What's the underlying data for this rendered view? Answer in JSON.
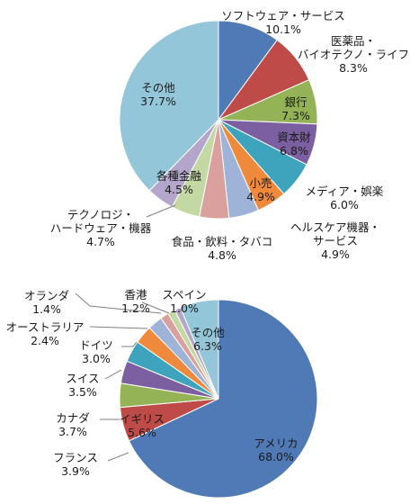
{
  "chart_data": [
    {
      "type": "pie",
      "title": "",
      "units": "%",
      "start": "top, clockwise",
      "slices": [
        {
          "lines": [
            "ソフトウェア・サービス"
          ],
          "value": 10.1,
          "value_label": "10.1%",
          "color": "#4f7ab5"
        },
        {
          "lines": [
            "医薬品・",
            "バイオテクノ・ライフ"
          ],
          "value": 8.3,
          "value_label": "8.3%",
          "color": "#bf4b48"
        },
        {
          "lines": [
            "銀行"
          ],
          "value": 7.3,
          "value_label": "7.3%",
          "color": "#94b356"
        },
        {
          "lines": [
            "資本財"
          ],
          "value": 6.8,
          "value_label": "6.8%",
          "color": "#7b5fa1"
        },
        {
          "lines": [
            "メディア・娯楽"
          ],
          "value": 6.0,
          "value_label": "6.0%",
          "color": "#3ea3bd"
        },
        {
          "lines": [
            "小売"
          ],
          "value": 4.9,
          "value_label": "4.9%",
          "color": "#ef8a3c"
        },
        {
          "lines": [
            "ヘルスケア機器・",
            "サービス"
          ],
          "value": 4.9,
          "value_label": "4.9%",
          "color": "#9fb3d9"
        },
        {
          "lines": [
            "食品・飲料・タバコ"
          ],
          "value": 4.8,
          "value_label": "4.8%",
          "color": "#d9a09e"
        },
        {
          "lines": [
            "テクノロジ・",
            "ハードウェア・機器"
          ],
          "value": 4.7,
          "value_label": "4.7%",
          "color": "#c3d8a2"
        },
        {
          "lines": [
            "各種金融"
          ],
          "value": 4.5,
          "value_label": "4.5%",
          "color": "#b4a6cb"
        },
        {
          "lines": [
            "その他"
          ],
          "value": 37.7,
          "value_label": "37.7%",
          "color": "#93c6d8"
        }
      ]
    },
    {
      "type": "pie",
      "title": "",
      "units": "%",
      "start": "top, clockwise",
      "slices": [
        {
          "lines": [
            "アメリカ"
          ],
          "value": 68.0,
          "value_label": "68.0%",
          "color": "#4f7ab5"
        },
        {
          "lines": [
            "イギリス"
          ],
          "value": 5.6,
          "value_label": "5.6%",
          "color": "#bf4b48"
        },
        {
          "lines": [
            "フランス"
          ],
          "value": 3.9,
          "value_label": "3.9%",
          "color": "#94b356"
        },
        {
          "lines": [
            "カナダ"
          ],
          "value": 3.7,
          "value_label": "3.7%",
          "color": "#7b5fa1"
        },
        {
          "lines": [
            "スイス"
          ],
          "value": 3.5,
          "value_label": "3.5%",
          "color": "#3ea3bd"
        },
        {
          "lines": [
            "ドイツ"
          ],
          "value": 3.0,
          "value_label": "3.0%",
          "color": "#ef8a3c"
        },
        {
          "lines": [
            "オーストラリア"
          ],
          "value": 2.4,
          "value_label": "2.4%",
          "color": "#9fb3d9"
        },
        {
          "lines": [
            "オランダ"
          ],
          "value": 1.4,
          "value_label": "1.4%",
          "color": "#d9a09e"
        },
        {
          "lines": [
            "香港"
          ],
          "value": 1.2,
          "value_label": "1.2%",
          "color": "#c3d8a2"
        },
        {
          "lines": [
            "スペイン"
          ],
          "value": 1.0,
          "value_label": "1.0%",
          "color": "#b4a6cb"
        },
        {
          "lines": [
            "その他"
          ],
          "value": 6.3,
          "value_label": "6.3%",
          "color": "#93c6d8"
        }
      ]
    }
  ]
}
